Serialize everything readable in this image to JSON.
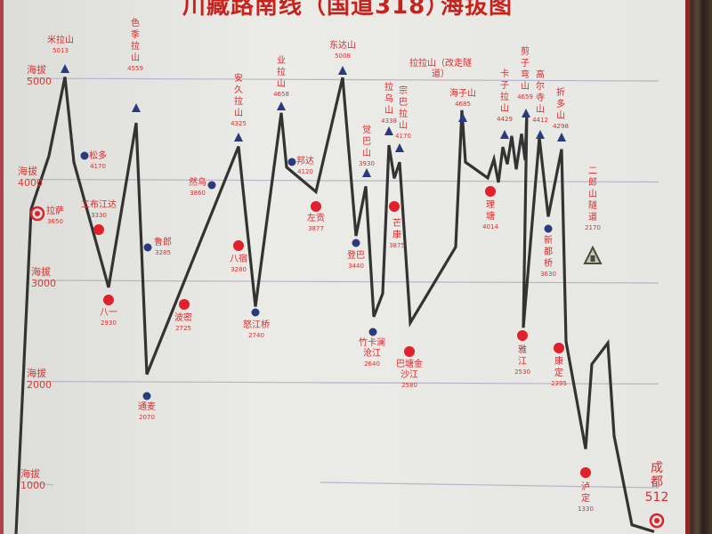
{
  "title": {
    "main": "川藏路南线（国道318）",
    "suffix": "海拔图"
  },
  "colors": {
    "line": "#333333",
    "label": "#e0282a",
    "pass_marker": "#2b3a7a",
    "town_marker": "#e0202a",
    "grid": "#b8b4c8"
  },
  "chart_data": {
    "type": "line",
    "title": "川藏路南线（国道318）海拔图",
    "ylabel_prefix": "海拔",
    "y_ticks": [
      5000,
      4000,
      3000,
      2000,
      1000
    ],
    "ylim": [
      500,
      5100
    ],
    "grid": true,
    "profile_elevations": [
      490,
      3705,
      4233,
      5013,
      4170,
      2930,
      4559,
      2070,
      4325,
      2740,
      4658,
      4120,
      3877,
      5008,
      3440,
      3930,
      2640,
      2870,
      4338,
      4010,
      4170,
      2580,
      3330,
      4685,
      4170,
      4014,
      4200,
      3970,
      4320,
      4150,
      4429,
      4100,
      4450,
      4190,
      4659,
      2530,
      4412,
      3630,
      4298,
      2395,
      1330,
      2170,
      2380,
      1460,
      580,
      512
    ],
    "stations": [
      {
        "name": "米拉山",
        "elevation": "5013",
        "marker": "pass"
      },
      {
        "name": "松多",
        "elevation": "4170",
        "marker": "dot"
      },
      {
        "name": "拉萨",
        "elevation": "3650",
        "marker": "city"
      },
      {
        "name": "工布江达",
        "elevation": "3330",
        "marker": "town"
      },
      {
        "name": "八一",
        "elevation": "2930",
        "marker": "town"
      },
      {
        "name": "色季拉山",
        "elevation": "4559",
        "marker": "pass"
      },
      {
        "name": "鲁郎",
        "elevation": "3285",
        "marker": "dot"
      },
      {
        "name": "通麦",
        "elevation": "2070",
        "marker": "dot"
      },
      {
        "name": "波密",
        "elevation": "2725",
        "marker": "town"
      },
      {
        "name": "然乌",
        "elevation": "3860",
        "marker": "dot"
      },
      {
        "name": "安久拉山",
        "elevation": "4325",
        "marker": "pass"
      },
      {
        "name": "八宿",
        "elevation": "3280",
        "marker": "town"
      },
      {
        "name": "怒江桥",
        "elevation": "2740",
        "marker": "dot"
      },
      {
        "name": "业拉山",
        "elevation": "4658",
        "marker": "pass"
      },
      {
        "name": "邦达",
        "elevation": "4120",
        "marker": "dot"
      },
      {
        "name": "左贡",
        "elevation": "3877",
        "marker": "town"
      },
      {
        "name": "东达山",
        "elevation": "5008",
        "marker": "pass"
      },
      {
        "name": "登巴",
        "elevation": "3440",
        "marker": "dot"
      },
      {
        "name": "觉巴山",
        "elevation": "3930",
        "marker": "pass"
      },
      {
        "name": "竹卡澜沧江",
        "elevation": "2640",
        "marker": "dot"
      },
      {
        "name": "拉乌山",
        "elevation": "4338",
        "marker": "pass"
      },
      {
        "name": "宗巴拉山",
        "elevation": "4170",
        "marker": "pass"
      },
      {
        "name": "芒康",
        "elevation": "3875",
        "marker": "town"
      },
      {
        "name": "巴塘金沙江",
        "elevation": "2580",
        "marker": "town"
      },
      {
        "name": "拉拉山（改走隧道）",
        "elevation": "",
        "marker": "none"
      },
      {
        "name": "海子山",
        "elevation": "4685",
        "marker": "pass"
      },
      {
        "name": "理塘",
        "elevation": "4014",
        "marker": "town"
      },
      {
        "name": "卡子拉山",
        "elevation": "4429",
        "marker": "pass"
      },
      {
        "name": "剪子弯山",
        "elevation": "4659",
        "marker": "pass"
      },
      {
        "name": "高尔寺山",
        "elevation": "4412",
        "marker": "pass"
      },
      {
        "name": "新都桥",
        "elevation": "3630",
        "marker": "dot"
      },
      {
        "name": "折多山",
        "elevation": "4298",
        "marker": "pass"
      },
      {
        "name": "雅江",
        "elevation": "2530",
        "marker": "town"
      },
      {
        "name": "康定",
        "elevation": "2395",
        "marker": "town"
      },
      {
        "name": "二郎山隧道",
        "elevation": "2170",
        "marker": "tunnel"
      },
      {
        "name": "泸定",
        "elevation": "1330",
        "marker": "town"
      },
      {
        "name": "成都",
        "elevation": "512",
        "marker": "city"
      }
    ]
  }
}
